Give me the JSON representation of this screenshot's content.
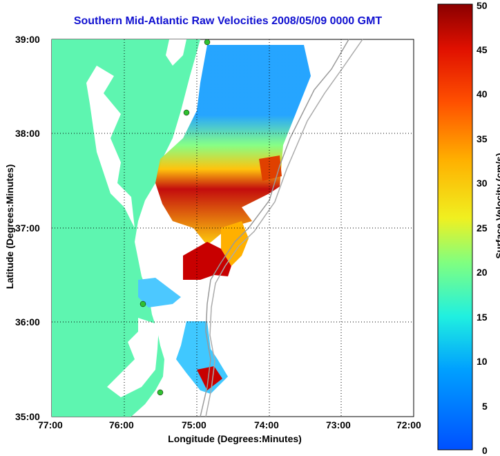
{
  "title": "Southern Mid-Atlantic Raw Velocities 2008/05/09 0000 GMT",
  "xlabel": "Longitude (Degrees:Minutes)",
  "ylabel": "Latitude (Degrees:Minutes)",
  "colorbar_label": "Surface Velocity (cm/s)",
  "x_ticks": [
    "77:00",
    "76:00",
    "75:00",
    "74:00",
    "73:00",
    "72:00"
  ],
  "y_ticks": [
    "39:00",
    "38:00",
    "37:00",
    "36:00",
    "35:00"
  ],
  "colorbar_ticks": [
    "50",
    "45",
    "40",
    "35",
    "30",
    "25",
    "20",
    "15",
    "10",
    "5",
    "0"
  ],
  "colors": {
    "land": "#5ef5b0",
    "water": "#ffffff",
    "title": "#1010d0",
    "colorbar": [
      "#0050ff",
      "#00b0ff",
      "#20f0e0",
      "#80ff80",
      "#f0f020",
      "#ffb000",
      "#ff5000",
      "#e01000",
      "#8a0000"
    ]
  },
  "map": {
    "lon_range": [
      -77,
      -72
    ],
    "lat_range": [
      35,
      39
    ],
    "grid": true
  },
  "colorbar_range": [
    0,
    50
  ]
}
